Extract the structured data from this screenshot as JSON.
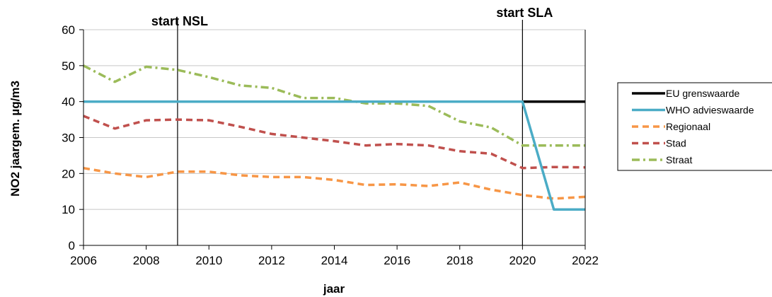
{
  "chart_data": {
    "type": "line",
    "xlabel": "jaar",
    "ylabel": "NO2 jaargem. µg/m3",
    "xlim": [
      2006,
      2022
    ],
    "ylim": [
      0,
      60
    ],
    "x_ticks": [
      2006,
      2008,
      2010,
      2012,
      2014,
      2016,
      2018,
      2020,
      2022
    ],
    "y_ticks": [
      0,
      10,
      20,
      30,
      40,
      50,
      60
    ],
    "grid": "horizontal",
    "legend_position": "right",
    "annotations": [
      {
        "label": "start NSL",
        "x": 2009
      },
      {
        "label": "start SLA",
        "x": 2020
      }
    ],
    "series": [
      {
        "name": "EU grenswaarde",
        "color": "#000000",
        "dash": "solid",
        "x": [
          2006,
          2022
        ],
        "y": [
          40,
          40
        ]
      },
      {
        "name": "WHO advieswaarde",
        "color": "#4bacc6",
        "dash": "solid",
        "x": [
          2006,
          2020,
          2021,
          2022
        ],
        "y": [
          40,
          40,
          10,
          10
        ]
      },
      {
        "name": "Regionaal",
        "color": "#f79646",
        "dash": "dash",
        "x": [
          2006,
          2007,
          2008,
          2009,
          2010,
          2011,
          2012,
          2013,
          2014,
          2015,
          2016,
          2017,
          2018,
          2019,
          2020,
          2021,
          2022
        ],
        "y": [
          21.5,
          20,
          19,
          20.5,
          20.5,
          19.5,
          19,
          19,
          18.2,
          16.8,
          17,
          16.5,
          17.5,
          15.5,
          14,
          13,
          13.5
        ]
      },
      {
        "name": "Stad",
        "color": "#c0504d",
        "dash": "dash",
        "x": [
          2006,
          2007,
          2008,
          2009,
          2010,
          2011,
          2012,
          2013,
          2014,
          2015,
          2016,
          2017,
          2018,
          2019,
          2020,
          2021,
          2022
        ],
        "y": [
          36,
          32.5,
          34.8,
          35,
          34.8,
          33,
          31,
          30,
          29,
          27.8,
          28.2,
          27.8,
          26.2,
          25.5,
          21.5,
          21.8,
          21.7
        ]
      },
      {
        "name": "Straat",
        "color": "#9bbb59",
        "dash": "dashdot",
        "x": [
          2006,
          2007,
          2008,
          2009,
          2010,
          2011,
          2012,
          2013,
          2014,
          2015,
          2016,
          2017,
          2018,
          2019,
          2020,
          2021,
          2022
        ],
        "y": [
          50,
          45.5,
          49.7,
          48.8,
          46.8,
          44.5,
          43.8,
          41,
          41,
          39.5,
          39.5,
          38.8,
          34.5,
          32.8,
          27.8,
          27.8,
          27.8
        ]
      }
    ]
  }
}
